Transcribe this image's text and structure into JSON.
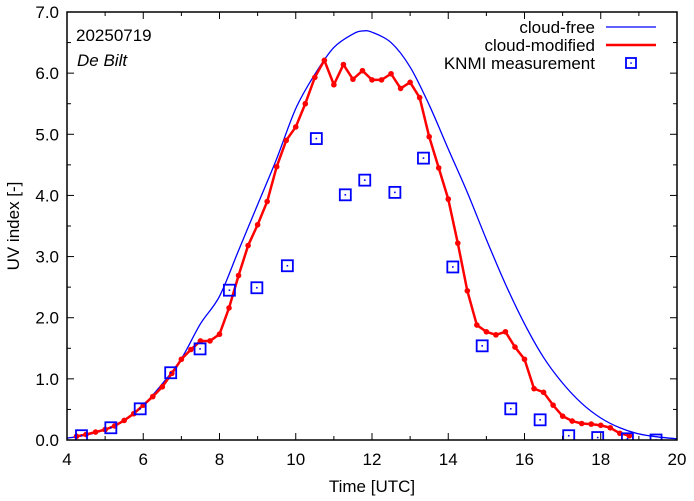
{
  "chart_data": {
    "type": "line",
    "title": "",
    "annotations": [
      "20250719",
      "De Bilt"
    ],
    "xlabel": "Time  [UTC]",
    "ylabel": "UV index  [-]",
    "xlim": [
      4,
      20
    ],
    "ylim": [
      0,
      7
    ],
    "x_ticks": [
      4,
      6,
      8,
      10,
      12,
      14,
      16,
      18,
      20
    ],
    "x_tick_labels": [
      "4",
      "6",
      "8",
      "10",
      "12",
      "14",
      "16",
      "18",
      "20"
    ],
    "y_ticks": [
      0,
      1,
      2,
      3,
      4,
      5,
      6,
      7
    ],
    "y_tick_labels": [
      "0.0",
      "1.0",
      "2.0",
      "3.0",
      "4.0",
      "5.0",
      "6.0",
      "7.0"
    ],
    "grid": false,
    "legend_position": "top-right",
    "colors": {
      "cloud_free": "#0000ff",
      "cloud_modified": "#ff0000",
      "measurement": "#0000ff"
    },
    "series": [
      {
        "name": "cloud-free",
        "style": "line",
        "x": [
          4.0,
          4.5,
          5.0,
          5.5,
          6.0,
          6.5,
          7.0,
          7.5,
          8.0,
          8.5,
          9.0,
          9.5,
          10.0,
          10.5,
          11.0,
          11.5,
          11.76,
          12.0,
          12.5,
          13.0,
          13.5,
          14.0,
          14.5,
          15.0,
          15.5,
          16.0,
          16.5,
          17.0,
          17.5,
          18.0,
          18.5,
          19.0,
          19.5,
          20.0
        ],
        "y": [
          0.03,
          0.08,
          0.17,
          0.33,
          0.57,
          0.92,
          1.33,
          1.9,
          2.35,
          3.1,
          3.85,
          4.6,
          5.42,
          5.98,
          6.42,
          6.64,
          6.69,
          6.67,
          6.5,
          6.1,
          5.48,
          4.76,
          4.05,
          3.28,
          2.55,
          1.9,
          1.35,
          0.93,
          0.6,
          0.36,
          0.2,
          0.1,
          0.05,
          0.02
        ]
      },
      {
        "name": "cloud-modified",
        "style": "line-points",
        "x": [
          4.25,
          4.5,
          4.75,
          5.0,
          5.25,
          5.5,
          5.75,
          6.0,
          6.25,
          6.5,
          6.75,
          7.0,
          7.25,
          7.5,
          7.75,
          8.0,
          8.25,
          8.5,
          8.75,
          9.0,
          9.25,
          9.5,
          9.75,
          10.0,
          10.25,
          10.5,
          10.75,
          11.0,
          11.25,
          11.5,
          11.75,
          12.0,
          12.25,
          12.5,
          12.75,
          13.0,
          13.25,
          13.5,
          13.75,
          14.0,
          14.25,
          14.5,
          14.75,
          15.0,
          15.25,
          15.5,
          15.75,
          16.0,
          16.25,
          16.5,
          16.75,
          17.0,
          17.25,
          17.5,
          17.75,
          18.0,
          18.25,
          18.5,
          18.75
        ],
        "y": [
          0.06,
          0.09,
          0.13,
          0.17,
          0.23,
          0.32,
          0.43,
          0.57,
          0.71,
          0.87,
          1.09,
          1.32,
          1.48,
          1.62,
          1.62,
          1.73,
          2.16,
          2.69,
          3.18,
          3.52,
          3.9,
          4.47,
          4.9,
          5.12,
          5.5,
          5.93,
          6.21,
          5.81,
          6.14,
          5.9,
          6.04,
          5.89,
          5.89,
          5.99,
          5.75,
          5.85,
          5.6,
          4.96,
          4.45,
          3.94,
          3.22,
          2.44,
          1.88,
          1.77,
          1.72,
          1.77,
          1.52,
          1.32,
          0.84,
          0.78,
          0.57,
          0.39,
          0.31,
          0.27,
          0.26,
          0.24,
          0.2,
          0.11,
          0.07
        ]
      },
      {
        "name": "KNMI measurement",
        "style": "square-markers",
        "x": [
          4.38,
          5.15,
          5.92,
          6.72,
          7.49,
          8.26,
          8.98,
          9.78,
          10.54,
          11.3,
          11.81,
          12.6,
          13.35,
          14.12,
          14.89,
          15.64,
          16.41,
          17.16,
          17.92,
          18.7,
          19.45
        ],
        "y": [
          0.07,
          0.2,
          0.51,
          1.1,
          1.49,
          2.45,
          2.49,
          2.85,
          4.93,
          4.01,
          4.25,
          4.05,
          4.61,
          2.83,
          1.54,
          0.51,
          0.33,
          0.07,
          0.04,
          0.02,
          0.0
        ]
      }
    ]
  }
}
